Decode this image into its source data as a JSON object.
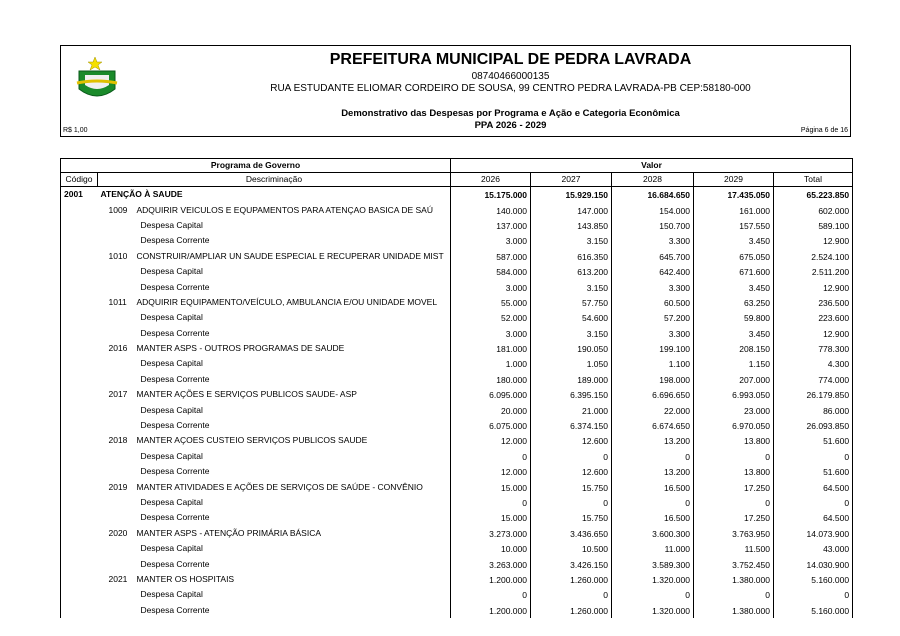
{
  "header": {
    "title": "PREFEITURA MUNICIPAL DE PEDRA LAVRADA",
    "cnpj": "08740466000135",
    "address": "RUA ESTUDANTE ELIOMAR CORDEIRO DE SOUSA, 99 CENTRO  PEDRA LAVRADA-PB  CEP:58180-000",
    "report_title": "Demonstrativo das Despesas por Programa e Ação e Categoria Econômica",
    "period": "PPA 2026 - 2029",
    "currency": "R$ 1,00",
    "page": "Página 6 de 16"
  },
  "table": {
    "group_header": "Programa de Governo",
    "value_header": "Valor",
    "columns": [
      "Código",
      "Descriminação",
      "2026",
      "2027",
      "2028",
      "2029",
      "Total"
    ],
    "rows": [
      {
        "code": "2001",
        "desc": "ATENÇÃO À SAUDE",
        "values": [
          "15.175.000",
          "15.929.150",
          "16.684.650",
          "17.435.050",
          "65.223.850"
        ]
      },
      {
        "action": "1009",
        "desc": "ADQUIRIR VEICULOS E  EQUPAMENTOS PARA ATENÇAO BASICA DE SAÚ",
        "values": [
          "140.000",
          "147.000",
          "154.000",
          "161.000",
          "602.000"
        ]
      },
      {
        "desc": "Despesa Capital",
        "values": [
          "137.000",
          "143.850",
          "150.700",
          "157.550",
          "589.100"
        ]
      },
      {
        "desc": "Despesa Corrente",
        "values": [
          "3.000",
          "3.150",
          "3.300",
          "3.450",
          "12.900"
        ]
      },
      {
        "action": "1010",
        "desc": "CONSTRUIR/AMPLIAR UN SAUDE ESPECIAL E RECUPERAR UNIDADE MIST",
        "values": [
          "587.000",
          "616.350",
          "645.700",
          "675.050",
          "2.524.100"
        ]
      },
      {
        "desc": "Despesa Capital",
        "values": [
          "584.000",
          "613.200",
          "642.400",
          "671.600",
          "2.511.200"
        ]
      },
      {
        "desc": "Despesa Corrente",
        "values": [
          "3.000",
          "3.150",
          "3.300",
          "3.450",
          "12.900"
        ]
      },
      {
        "action": "1011",
        "desc": "ADQUIRIR EQUIPAMENTO/VEÍCULO,  AMBULANCIA E/OU UNIDADE MOVEL",
        "values": [
          "55.000",
          "57.750",
          "60.500",
          "63.250",
          "236.500"
        ]
      },
      {
        "desc": "Despesa Capital",
        "values": [
          "52.000",
          "54.600",
          "57.200",
          "59.800",
          "223.600"
        ]
      },
      {
        "desc": "Despesa Corrente",
        "values": [
          "3.000",
          "3.150",
          "3.300",
          "3.450",
          "12.900"
        ]
      },
      {
        "action": "2016",
        "desc": "MANTER ASPS - OUTROS PROGRAMAS DE SAUDE",
        "values": [
          "181.000",
          "190.050",
          "199.100",
          "208.150",
          "778.300"
        ]
      },
      {
        "desc": "Despesa Capital",
        "values": [
          "1.000",
          "1.050",
          "1.100",
          "1.150",
          "4.300"
        ]
      },
      {
        "desc": "Despesa Corrente",
        "values": [
          "180.000",
          "189.000",
          "198.000",
          "207.000",
          "774.000"
        ]
      },
      {
        "action": "2017",
        "desc": "MANTER AÇÕES E SERVIÇOS PUBLICOS SAUDE- ASP",
        "values": [
          "6.095.000",
          "6.395.150",
          "6.696.650",
          "6.993.050",
          "26.179.850"
        ]
      },
      {
        "desc": "Despesa Capital",
        "values": [
          "20.000",
          "21.000",
          "22.000",
          "23.000",
          "86.000"
        ]
      },
      {
        "desc": "Despesa Corrente",
        "values": [
          "6.075.000",
          "6.374.150",
          "6.674.650",
          "6.970.050",
          "26.093.850"
        ]
      },
      {
        "action": "2018",
        "desc": "MANTER AÇOES CUSTEIO SERVIÇOS PUBLICOS SAUDE",
        "values": [
          "12.000",
          "12.600",
          "13.200",
          "13.800",
          "51.600"
        ]
      },
      {
        "desc": "Despesa Capital",
        "values": [
          "0",
          "0",
          "0",
          "0",
          "0"
        ]
      },
      {
        "desc": "Despesa Corrente",
        "values": [
          "12.000",
          "12.600",
          "13.200",
          "13.800",
          "51.600"
        ]
      },
      {
        "action": "2019",
        "desc": "MANTER ATIVIDADES E AÇÕES DE SERVIÇOS DE SAÚDE - CONVÊNIO",
        "values": [
          "15.000",
          "15.750",
          "16.500",
          "17.250",
          "64.500"
        ]
      },
      {
        "desc": "Despesa Capital",
        "values": [
          "0",
          "0",
          "0",
          "0",
          "0"
        ]
      },
      {
        "desc": "Despesa Corrente",
        "values": [
          "15.000",
          "15.750",
          "16.500",
          "17.250",
          "64.500"
        ]
      },
      {
        "action": "2020",
        "desc": "MANTER ASPS - ATENÇÃO PRIMÁRIA BÁSICA",
        "values": [
          "3.273.000",
          "3.436.650",
          "3.600.300",
          "3.763.950",
          "14.073.900"
        ]
      },
      {
        "desc": "Despesa Capital",
        "values": [
          "10.000",
          "10.500",
          "11.000",
          "11.500",
          "43.000"
        ]
      },
      {
        "desc": "Despesa Corrente",
        "values": [
          "3.263.000",
          "3.426.150",
          "3.589.300",
          "3.752.450",
          "14.030.900"
        ]
      },
      {
        "action": "2021",
        "desc": "MANTER OS HOSPITAIS",
        "values": [
          "1.200.000",
          "1.260.000",
          "1.320.000",
          "1.380.000",
          "5.160.000"
        ]
      },
      {
        "desc": "Despesa Capital",
        "values": [
          "0",
          "0",
          "0",
          "0",
          "0"
        ]
      },
      {
        "desc": "Despesa Corrente",
        "values": [
          "1.200.000",
          "1.260.000",
          "1.320.000",
          "1.380.000",
          "5.160.000"
        ]
      }
    ]
  }
}
